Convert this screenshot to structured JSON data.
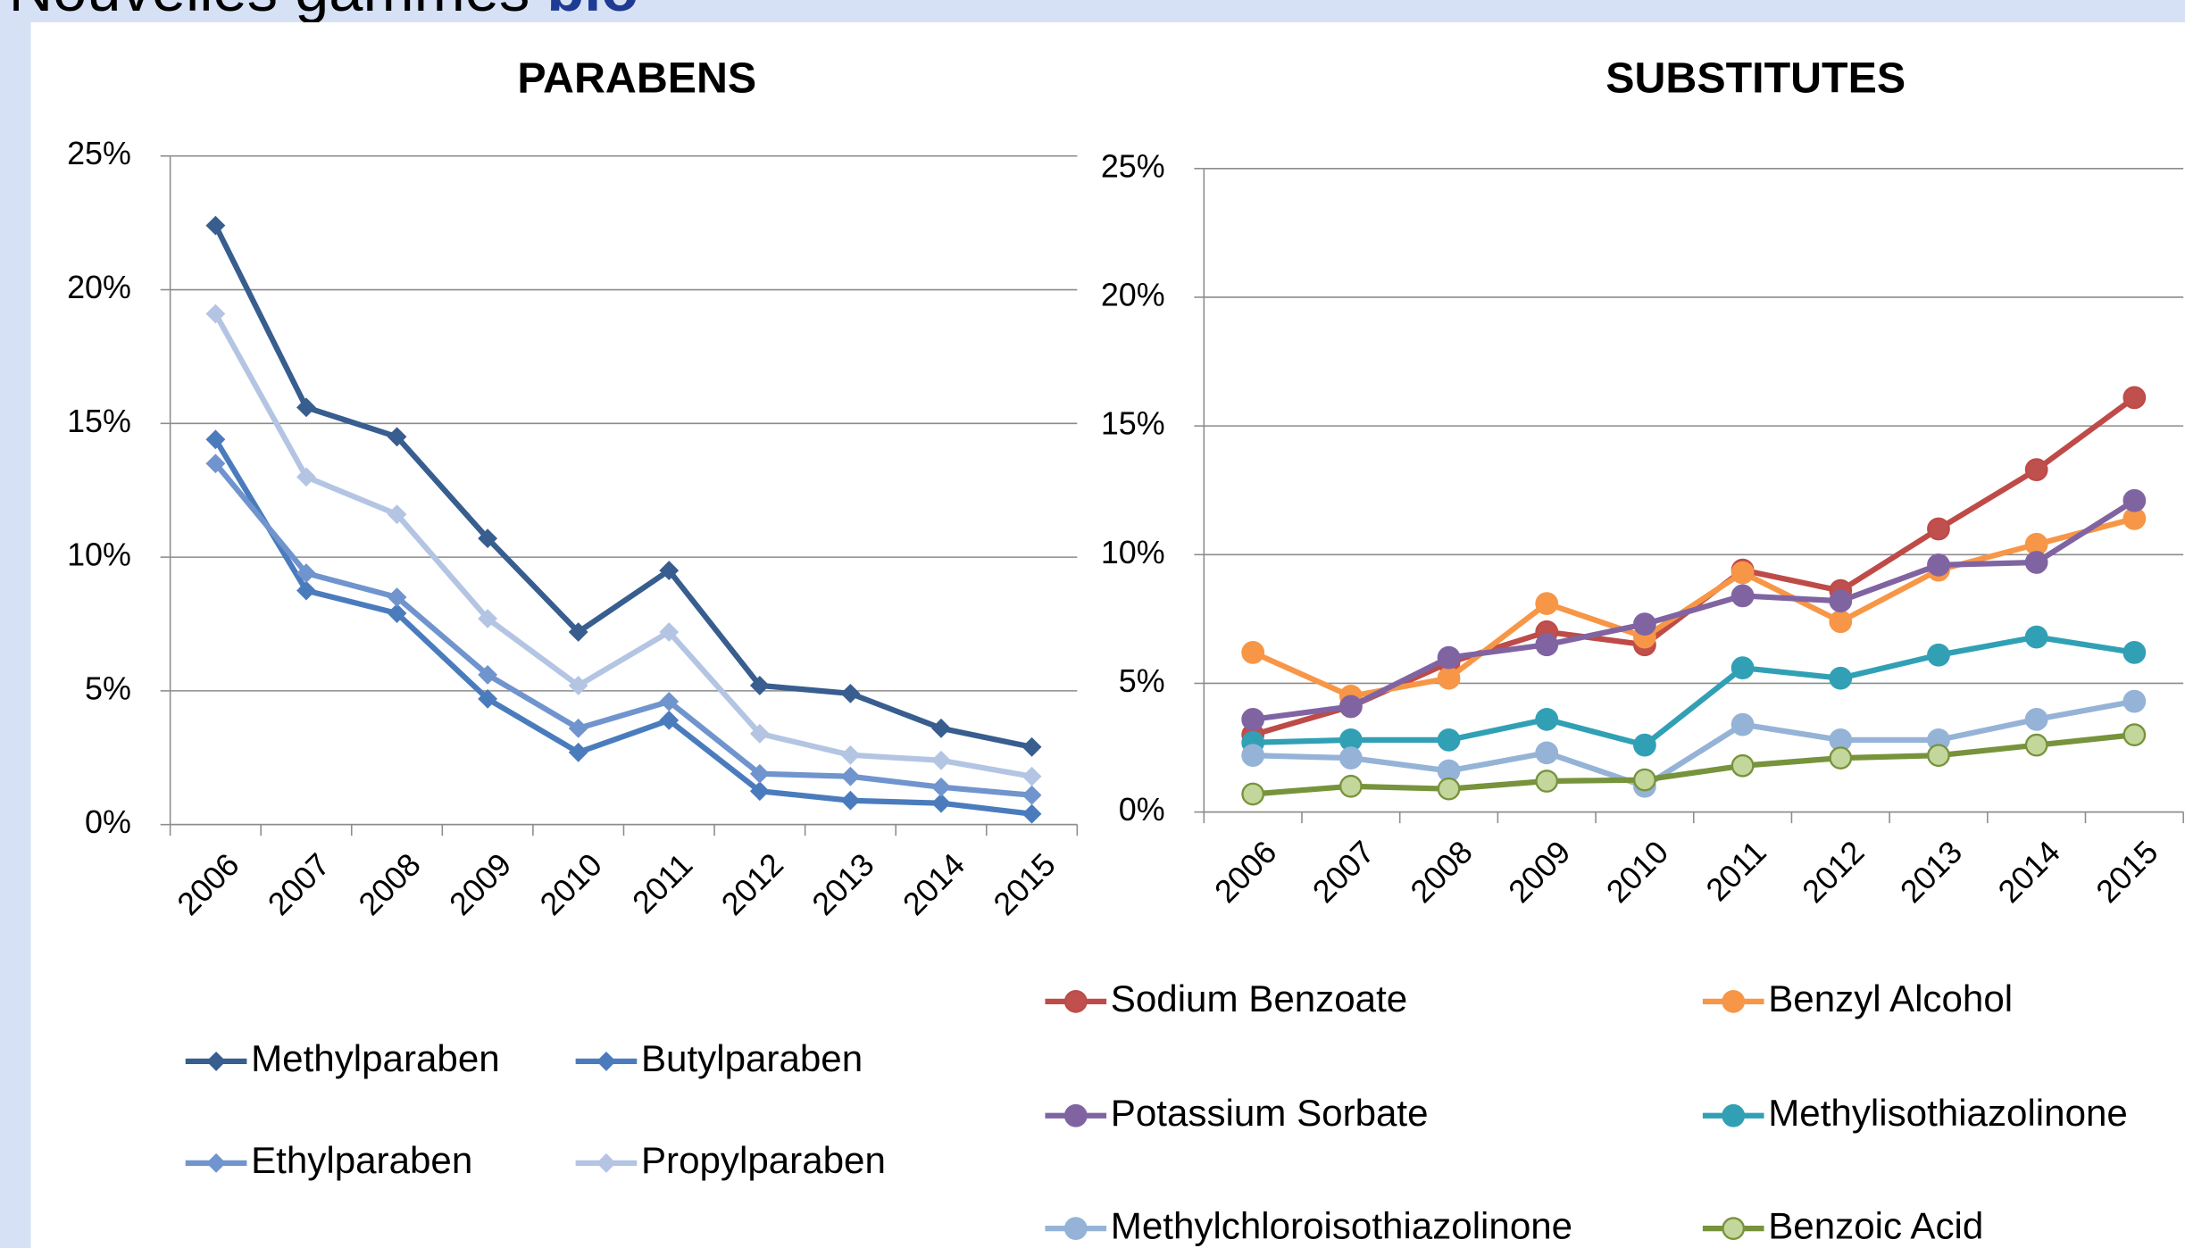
{
  "header": {
    "title": "Nouvelles gammes",
    "highlight": "bio"
  },
  "chart_data": [
    {
      "type": "line",
      "title": "PARABENS",
      "marker": "diamond",
      "categories": [
        "2006",
        "2007",
        "2008",
        "2009",
        "2010",
        "2011",
        "2012",
        "2013",
        "2014",
        "2015"
      ],
      "ylim": [
        0,
        25
      ],
      "yticks": [
        {
          "value": 0,
          "label": "0%"
        },
        {
          "value": 5,
          "label": "5%"
        },
        {
          "value": 10,
          "label": "10%"
        },
        {
          "value": 15,
          "label": "15%"
        },
        {
          "value": 20,
          "label": "20%"
        },
        {
          "value": 25,
          "label": "25%"
        }
      ],
      "grid": true,
      "series": [
        {
          "name": "Methylparaben",
          "color": "#385d8f",
          "values": [
            22.4,
            15.6,
            14.5,
            10.7,
            7.2,
            9.5,
            5.2,
            4.9,
            3.6,
            2.9
          ]
        },
        {
          "name": "Butylparaben",
          "color": "#4a7cbd",
          "values": [
            14.4,
            8.75,
            7.9,
            4.7,
            2.7,
            3.9,
            1.25,
            0.9,
            0.8,
            0.4
          ]
        },
        {
          "name": "Ethylparaben",
          "color": "#7094cd",
          "values": [
            13.5,
            9.4,
            8.5,
            5.6,
            3.6,
            4.6,
            1.9,
            1.8,
            1.4,
            1.1
          ]
        },
        {
          "name": "Propylparaben",
          "color": "#b4c5e3",
          "values": [
            19.1,
            13.0,
            11.6,
            7.7,
            5.2,
            7.2,
            3.4,
            2.6,
            2.4,
            1.8
          ]
        }
      ]
    },
    {
      "type": "line",
      "title": "SUBSTITUTES",
      "marker": "circle",
      "categories": [
        "2006",
        "2007",
        "2008",
        "2009",
        "2010",
        "2011",
        "2012",
        "2013",
        "2014",
        "2015"
      ],
      "ylim": [
        0,
        25
      ],
      "yticks": [
        {
          "value": 0,
          "label": "0%"
        },
        {
          "value": 5,
          "label": "5%"
        },
        {
          "value": 10,
          "label": "10%"
        },
        {
          "value": 15,
          "label": "15%"
        },
        {
          "value": 20,
          "label": "20%"
        },
        {
          "value": 25,
          "label": "25%"
        }
      ],
      "grid": true,
      "series": [
        {
          "name": "Sodium Benzoate",
          "color": "#be4b48",
          "marker_color": "#c0504d",
          "values": [
            3.0,
            4.1,
            5.8,
            7.0,
            6.5,
            9.4,
            8.6,
            11.0,
            13.3,
            16.1
          ]
        },
        {
          "name": "Benzyl Alcohol",
          "color": "#f79646",
          "marker_color": "#f79646",
          "values": [
            6.2,
            4.5,
            5.2,
            8.1,
            6.8,
            9.3,
            7.4,
            9.4,
            10.4,
            11.4
          ]
        },
        {
          "name": "Potassium Sorbate",
          "color": "#8064a2",
          "marker_color": "#8064a2",
          "values": [
            3.6,
            4.1,
            6.0,
            6.5,
            7.3,
            8.4,
            8.2,
            9.6,
            9.7,
            12.1
          ]
        },
        {
          "name": "Methylisothiazolinone",
          "color": "#31a0b5",
          "marker_color": "#31a0b5",
          "values": [
            2.7,
            2.8,
            2.8,
            3.6,
            2.6,
            5.6,
            5.2,
            6.1,
            6.8,
            6.2
          ]
        },
        {
          "name": "Methylchloroisothiazolinone",
          "color": "#95b3d7",
          "marker_color": "#95b3d7",
          "values": [
            2.2,
            2.1,
            1.6,
            2.3,
            1.0,
            3.4,
            2.8,
            2.8,
            3.6,
            4.3
          ]
        },
        {
          "name": "Benzoic Acid",
          "color": "#77933c",
          "marker_color": "#c3d69b",
          "values": [
            0.7,
            1.0,
            0.9,
            1.2,
            1.25,
            1.8,
            2.1,
            2.2,
            2.6,
            3.0
          ]
        }
      ]
    }
  ]
}
